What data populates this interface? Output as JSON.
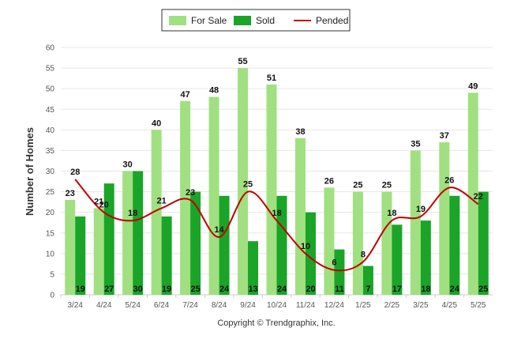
{
  "chart_data": {
    "type": "bar",
    "categories": [
      "3/24",
      "4/24",
      "5/24",
      "6/24",
      "7/24",
      "8/24",
      "9/24",
      "10/24",
      "11/24",
      "12/24",
      "1/25",
      "2/25",
      "3/25",
      "4/25",
      "5/25"
    ],
    "series": [
      {
        "name": "For Sale",
        "type": "bar",
        "color": "#a0e080",
        "values": [
          23,
          21,
          30,
          40,
          47,
          48,
          55,
          51,
          38,
          26,
          25,
          25,
          35,
          37,
          49
        ]
      },
      {
        "name": "Sold",
        "type": "bar",
        "color": "#1aa428",
        "values": [
          19,
          27,
          30,
          19,
          25,
          24,
          13,
          24,
          20,
          11,
          7,
          17,
          18,
          24,
          25
        ]
      },
      {
        "name": "Pended",
        "type": "line",
        "color": "#c00000",
        "values": [
          28,
          20,
          18,
          21,
          23,
          14,
          25,
          18,
          10,
          6,
          8,
          18,
          19,
          26,
          22
        ]
      }
    ],
    "xlabel": "",
    "ylabel": "Number of Homes",
    "ylim": [
      0,
      60
    ],
    "yticks": [
      0,
      5,
      10,
      15,
      20,
      25,
      30,
      35,
      40,
      45,
      50,
      55,
      60
    ],
    "grid": true,
    "legend_position": "top-center"
  },
  "copyright": "Copyright © Trendgraphix, Inc."
}
